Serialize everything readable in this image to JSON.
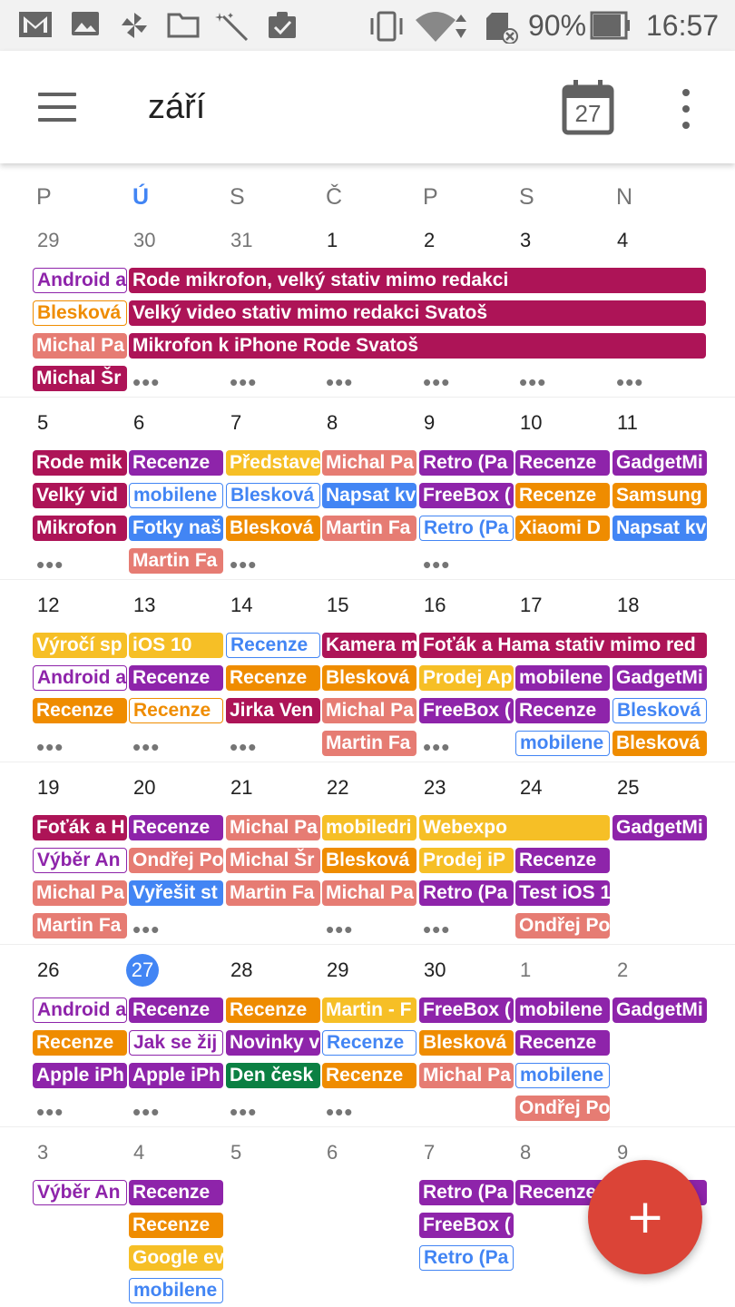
{
  "status": {
    "battery": "90%",
    "time": "16:57",
    "icons": [
      "gmail-icon",
      "image-icon",
      "pinwheel-icon",
      "folder-icon",
      "wand-icon",
      "clipboard-check-icon",
      "vibrate-icon",
      "wifi-icon",
      "sd-card-icon",
      "battery-icon"
    ]
  },
  "header": {
    "month": "září",
    "today_day": "27",
    "menu_icon": "hamburger-menu-icon",
    "more_icon": "more-vert-icon"
  },
  "weekdays": [
    "P",
    "Ú",
    "S",
    "Č",
    "P",
    "S",
    "N"
  ],
  "today_index": 1,
  "colors": {
    "crimson": "#AD1457",
    "purple": "#8E24AA",
    "orange": "#EF8C00",
    "salmon": "#E67C73",
    "blue": "#4285F4",
    "yellow": "#F6BF26",
    "teal": "#0B8043",
    "today": "#4285F4",
    "fab": "#DB4437"
  },
  "more_label": "•••",
  "fab_label": "+",
  "weeks": [
    {
      "days": [
        {
          "n": "29",
          "other": true
        },
        {
          "n": "30",
          "other": true
        },
        {
          "n": "31",
          "other": true
        },
        {
          "n": "1"
        },
        {
          "n": "2"
        },
        {
          "n": "3"
        },
        {
          "n": "4"
        }
      ],
      "events": [
        {
          "col": 0,
          "span": 1,
          "slot": 0,
          "text": "Android a",
          "color": "purple",
          "outline": true
        },
        {
          "col": 0,
          "span": 1,
          "slot": 1,
          "text": "Blesková",
          "color": "orange",
          "outline": true
        },
        {
          "col": 0,
          "span": 1,
          "slot": 2,
          "text": "Michal Pa",
          "color": "salmon"
        },
        {
          "col": 0,
          "span": 1,
          "slot": 3,
          "text": "Michal Šr",
          "color": "crimson"
        },
        {
          "col": 1,
          "span": 6,
          "slot": 0,
          "text": "Rode mikrofon, velký stativ mimo redakci",
          "color": "crimson"
        },
        {
          "col": 1,
          "span": 6,
          "slot": 1,
          "text": "Velký video stativ mimo redakci Svatoš",
          "color": "crimson"
        },
        {
          "col": 1,
          "span": 6,
          "slot": 2,
          "text": "Mikrofon k iPhone Rode Svatoš",
          "color": "crimson"
        }
      ],
      "more": [
        1,
        2,
        3,
        4,
        5,
        6
      ]
    },
    {
      "days": [
        {
          "n": "5"
        },
        {
          "n": "6"
        },
        {
          "n": "7"
        },
        {
          "n": "8"
        },
        {
          "n": "9"
        },
        {
          "n": "10"
        },
        {
          "n": "11"
        }
      ],
      "events": [
        {
          "col": 0,
          "span": 1,
          "slot": 0,
          "text": "Rode mik",
          "color": "crimson"
        },
        {
          "col": 0,
          "span": 1,
          "slot": 1,
          "text": "Velký vid",
          "color": "crimson"
        },
        {
          "col": 0,
          "span": 1,
          "slot": 2,
          "text": "Mikrofon",
          "color": "crimson"
        },
        {
          "col": 1,
          "span": 1,
          "slot": 0,
          "text": "Recenze",
          "color": "purple"
        },
        {
          "col": 1,
          "span": 1,
          "slot": 1,
          "text": "mobilene",
          "color": "blue",
          "outline": true
        },
        {
          "col": 1,
          "span": 1,
          "slot": 2,
          "text": "Fotky naš",
          "color": "blue"
        },
        {
          "col": 1,
          "span": 1,
          "slot": 3,
          "text": "Martin Fa",
          "color": "salmon"
        },
        {
          "col": 2,
          "span": 1,
          "slot": 0,
          "text": "Představe",
          "color": "yellow"
        },
        {
          "col": 2,
          "span": 1,
          "slot": 1,
          "text": "Blesková",
          "color": "blue",
          "outline": true
        },
        {
          "col": 2,
          "span": 1,
          "slot": 2,
          "text": "Blesková",
          "color": "orange"
        },
        {
          "col": 3,
          "span": 1,
          "slot": 0,
          "text": "Michal Pa",
          "color": "salmon"
        },
        {
          "col": 3,
          "span": 1,
          "slot": 1,
          "text": "Napsat kv",
          "color": "blue"
        },
        {
          "col": 3,
          "span": 1,
          "slot": 2,
          "text": "Martin Fa",
          "color": "salmon"
        },
        {
          "col": 4,
          "span": 1,
          "slot": 0,
          "text": "Retro (Pa",
          "color": "purple"
        },
        {
          "col": 4,
          "span": 1,
          "slot": 1,
          "text": "FreeBox (",
          "color": "purple"
        },
        {
          "col": 4,
          "span": 1,
          "slot": 2,
          "text": "Retro (Pa",
          "color": "blue",
          "outline": true
        },
        {
          "col": 5,
          "span": 1,
          "slot": 0,
          "text": "Recenze",
          "color": "purple"
        },
        {
          "col": 5,
          "span": 1,
          "slot": 1,
          "text": "Recenze",
          "color": "orange"
        },
        {
          "col": 5,
          "span": 1,
          "slot": 2,
          "text": "Xiaomi D",
          "color": "orange"
        },
        {
          "col": 6,
          "span": 1,
          "slot": 0,
          "text": "GadgetMi",
          "color": "purple"
        },
        {
          "col": 6,
          "span": 1,
          "slot": 1,
          "text": "Samsung",
          "color": "orange"
        },
        {
          "col": 6,
          "span": 1,
          "slot": 2,
          "text": "Napsat kv",
          "color": "blue"
        }
      ],
      "more": [
        0,
        2,
        4
      ]
    },
    {
      "days": [
        {
          "n": "12"
        },
        {
          "n": "13"
        },
        {
          "n": "14"
        },
        {
          "n": "15"
        },
        {
          "n": "16"
        },
        {
          "n": "17"
        },
        {
          "n": "18"
        }
      ],
      "events": [
        {
          "col": 0,
          "span": 1,
          "slot": 0,
          "text": "Výročí sp",
          "color": "yellow"
        },
        {
          "col": 0,
          "span": 1,
          "slot": 1,
          "text": "Android a",
          "color": "purple",
          "outline": true
        },
        {
          "col": 0,
          "span": 1,
          "slot": 2,
          "text": "Recenze",
          "color": "orange"
        },
        {
          "col": 1,
          "span": 1,
          "slot": 0,
          "text": "iOS 10",
          "color": "yellow"
        },
        {
          "col": 1,
          "span": 1,
          "slot": 1,
          "text": "Recenze",
          "color": "purple"
        },
        {
          "col": 1,
          "span": 1,
          "slot": 2,
          "text": "Recenze",
          "color": "orange",
          "outline": true
        },
        {
          "col": 2,
          "span": 1,
          "slot": 0,
          "text": "Recenze",
          "color": "blue",
          "outline": true
        },
        {
          "col": 2,
          "span": 1,
          "slot": 1,
          "text": "Recenze",
          "color": "orange"
        },
        {
          "col": 2,
          "span": 1,
          "slot": 2,
          "text": "Jirka Ven",
          "color": "crimson"
        },
        {
          "col": 3,
          "span": 1,
          "slot": 0,
          "text": "Kamera m",
          "color": "crimson"
        },
        {
          "col": 3,
          "span": 1,
          "slot": 1,
          "text": "Blesková",
          "color": "orange"
        },
        {
          "col": 3,
          "span": 1,
          "slot": 2,
          "text": "Michal Pa",
          "color": "salmon"
        },
        {
          "col": 3,
          "span": 1,
          "slot": 3,
          "text": "Martin Fa",
          "color": "salmon"
        },
        {
          "col": 4,
          "span": 3,
          "slot": 0,
          "text": "Foťák a Hama stativ mimo red",
          "color": "crimson"
        },
        {
          "col": 4,
          "span": 1,
          "slot": 1,
          "text": "Prodej Ap",
          "color": "yellow"
        },
        {
          "col": 4,
          "span": 1,
          "slot": 2,
          "text": "FreeBox (",
          "color": "purple"
        },
        {
          "col": 5,
          "span": 1,
          "slot": 1,
          "text": "mobilene",
          "color": "purple"
        },
        {
          "col": 5,
          "span": 1,
          "slot": 2,
          "text": "Recenze",
          "color": "purple"
        },
        {
          "col": 5,
          "span": 1,
          "slot": 3,
          "text": "mobilene",
          "color": "blue",
          "outline": true
        },
        {
          "col": 6,
          "span": 1,
          "slot": 1,
          "text": "GadgetMi",
          "color": "purple"
        },
        {
          "col": 6,
          "span": 1,
          "slot": 2,
          "text": "Blesková",
          "color": "blue",
          "outline": true
        },
        {
          "col": 6,
          "span": 1,
          "slot": 3,
          "text": "Blesková",
          "color": "orange"
        }
      ],
      "more": [
        0,
        1,
        2,
        4
      ]
    },
    {
      "days": [
        {
          "n": "19"
        },
        {
          "n": "20"
        },
        {
          "n": "21"
        },
        {
          "n": "22"
        },
        {
          "n": "23"
        },
        {
          "n": "24"
        },
        {
          "n": "25"
        }
      ],
      "events": [
        {
          "col": 0,
          "span": 1,
          "slot": 0,
          "text": "Foťák a H",
          "color": "crimson"
        },
        {
          "col": 0,
          "span": 1,
          "slot": 1,
          "text": "Výběr An",
          "color": "purple",
          "outline": true
        },
        {
          "col": 0,
          "span": 1,
          "slot": 2,
          "text": "Michal Pa",
          "color": "salmon"
        },
        {
          "col": 0,
          "span": 1,
          "slot": 3,
          "text": "Martin Fa",
          "color": "salmon"
        },
        {
          "col": 1,
          "span": 1,
          "slot": 0,
          "text": "Recenze",
          "color": "purple"
        },
        {
          "col": 1,
          "span": 1,
          "slot": 1,
          "text": "Ondřej Po",
          "color": "salmon"
        },
        {
          "col": 1,
          "span": 1,
          "slot": 2,
          "text": "Vyřešit st",
          "color": "blue"
        },
        {
          "col": 2,
          "span": 1,
          "slot": 0,
          "text": "Michal Pa",
          "color": "salmon"
        },
        {
          "col": 2,
          "span": 1,
          "slot": 1,
          "text": "Michal Šr",
          "color": "salmon"
        },
        {
          "col": 2,
          "span": 1,
          "slot": 2,
          "text": "Martin Fa",
          "color": "salmon"
        },
        {
          "col": 3,
          "span": 1,
          "slot": 0,
          "text": "mobiledri",
          "color": "yellow"
        },
        {
          "col": 3,
          "span": 1,
          "slot": 1,
          "text": "Blesková",
          "color": "orange"
        },
        {
          "col": 3,
          "span": 1,
          "slot": 2,
          "text": "Michal Pa",
          "color": "salmon"
        },
        {
          "col": 4,
          "span": 2,
          "slot": 0,
          "text": "Webexpo",
          "color": "yellow"
        },
        {
          "col": 4,
          "span": 1,
          "slot": 1,
          "text": "Prodej iP",
          "color": "yellow"
        },
        {
          "col": 4,
          "span": 1,
          "slot": 2,
          "text": "Retro (Pa",
          "color": "purple"
        },
        {
          "col": 5,
          "span": 1,
          "slot": 1,
          "text": "Recenze",
          "color": "purple"
        },
        {
          "col": 5,
          "span": 1,
          "slot": 2,
          "text": "Test iOS 1",
          "color": "purple"
        },
        {
          "col": 5,
          "span": 1,
          "slot": 3,
          "text": "Ondřej Po",
          "color": "salmon"
        },
        {
          "col": 6,
          "span": 1,
          "slot": 0,
          "text": "GadgetMi",
          "color": "purple"
        }
      ],
      "more": [
        1,
        3,
        4
      ]
    },
    {
      "days": [
        {
          "n": "26"
        },
        {
          "n": "27",
          "today": true
        },
        {
          "n": "28"
        },
        {
          "n": "29"
        },
        {
          "n": "30"
        },
        {
          "n": "1",
          "other": true
        },
        {
          "n": "2",
          "other": true
        }
      ],
      "events": [
        {
          "col": 0,
          "span": 1,
          "slot": 0,
          "text": "Android a",
          "color": "purple",
          "outline": true
        },
        {
          "col": 0,
          "span": 1,
          "slot": 1,
          "text": "Recenze",
          "color": "orange"
        },
        {
          "col": 0,
          "span": 1,
          "slot": 2,
          "text": "Apple iPh",
          "color": "purple"
        },
        {
          "col": 1,
          "span": 1,
          "slot": 0,
          "text": "Recenze",
          "color": "purple"
        },
        {
          "col": 1,
          "span": 1,
          "slot": 1,
          "text": "Jak se žij",
          "color": "purple",
          "outline": true
        },
        {
          "col": 1,
          "span": 1,
          "slot": 2,
          "text": "Apple iPh",
          "color": "purple"
        },
        {
          "col": 2,
          "span": 1,
          "slot": 0,
          "text": "Recenze",
          "color": "orange"
        },
        {
          "col": 2,
          "span": 1,
          "slot": 1,
          "text": "Novinky v",
          "color": "purple"
        },
        {
          "col": 2,
          "span": 1,
          "slot": 2,
          "text": "Den česk",
          "color": "teal"
        },
        {
          "col": 3,
          "span": 1,
          "slot": 0,
          "text": "Martin - F",
          "color": "yellow"
        },
        {
          "col": 3,
          "span": 1,
          "slot": 1,
          "text": "Recenze",
          "color": "blue",
          "outline": true
        },
        {
          "col": 3,
          "span": 1,
          "slot": 2,
          "text": "Recenze",
          "color": "orange"
        },
        {
          "col": 4,
          "span": 1,
          "slot": 0,
          "text": "FreeBox (",
          "color": "purple"
        },
        {
          "col": 4,
          "span": 1,
          "slot": 1,
          "text": "Blesková",
          "color": "orange"
        },
        {
          "col": 4,
          "span": 1,
          "slot": 2,
          "text": "Michal Pa",
          "color": "salmon"
        },
        {
          "col": 5,
          "span": 1,
          "slot": 0,
          "text": "mobilene",
          "color": "purple"
        },
        {
          "col": 5,
          "span": 1,
          "slot": 1,
          "text": "Recenze",
          "color": "purple"
        },
        {
          "col": 5,
          "span": 1,
          "slot": 2,
          "text": "mobilene",
          "color": "blue",
          "outline": true
        },
        {
          "col": 5,
          "span": 1,
          "slot": 3,
          "text": "Ondřej Po",
          "color": "salmon"
        },
        {
          "col": 6,
          "span": 1,
          "slot": 0,
          "text": "GadgetMi",
          "color": "purple"
        }
      ],
      "more": [
        0,
        1,
        2,
        3
      ]
    },
    {
      "days": [
        {
          "n": "3",
          "other": true
        },
        {
          "n": "4",
          "other": true
        },
        {
          "n": "5",
          "other": true
        },
        {
          "n": "6",
          "other": true
        },
        {
          "n": "7",
          "other": true
        },
        {
          "n": "8",
          "other": true
        },
        {
          "n": "9",
          "other": true
        }
      ],
      "events": [
        {
          "col": 0,
          "span": 1,
          "slot": 0,
          "text": "Výběr An",
          "color": "purple",
          "outline": true
        },
        {
          "col": 1,
          "span": 1,
          "slot": 0,
          "text": "Recenze",
          "color": "purple"
        },
        {
          "col": 1,
          "span": 1,
          "slot": 1,
          "text": "Recenze",
          "color": "orange"
        },
        {
          "col": 1,
          "span": 1,
          "slot": 2,
          "text": "Google ev",
          "color": "yellow"
        },
        {
          "col": 1,
          "span": 1,
          "slot": 3,
          "text": "mobilene",
          "color": "blue",
          "outline": true
        },
        {
          "col": 4,
          "span": 1,
          "slot": 0,
          "text": "Retro (Pa",
          "color": "purple"
        },
        {
          "col": 4,
          "span": 1,
          "slot": 1,
          "text": "FreeBox (",
          "color": "purple"
        },
        {
          "col": 4,
          "span": 1,
          "slot": 2,
          "text": "Retro (Pa",
          "color": "blue",
          "outline": true
        },
        {
          "col": 5,
          "span": 1,
          "slot": 0,
          "text": "Recenze",
          "color": "purple"
        },
        {
          "col": 6,
          "span": 1,
          "slot": 0,
          "text": "",
          "color": "purple"
        }
      ],
      "more": []
    }
  ]
}
